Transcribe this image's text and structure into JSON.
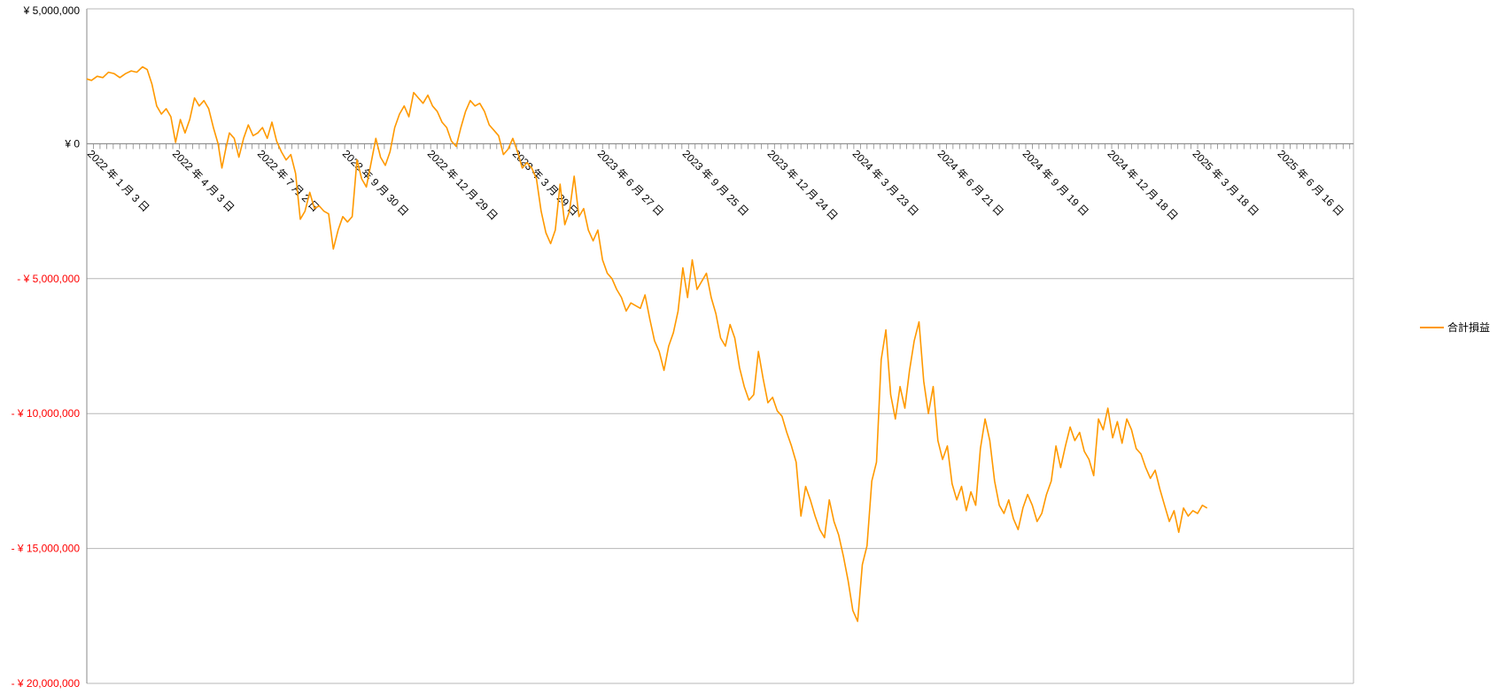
{
  "chart_data": {
    "type": "line",
    "y_ticks": [
      {
        "value": 5000000,
        "label": "¥ 5,000,000"
      },
      {
        "value": 0,
        "label": "¥ 0"
      },
      {
        "value": -5000000,
        "label": "- ¥ 5,000,000"
      },
      {
        "value": -10000000,
        "label": "- ¥ 10,000,000"
      },
      {
        "value": -15000000,
        "label": "- ¥ 15,000,000"
      },
      {
        "value": -20000000,
        "label": "- ¥ 20,000,000"
      }
    ],
    "ylim": [
      -20000000,
      5000000
    ],
    "xlim": [
      "2022-01-03",
      "2025-09-05"
    ],
    "x_tick_labels": [
      {
        "date": "2022-01-03",
        "label": "2022 年 1 月 3 日"
      },
      {
        "date": "2022-04-03",
        "label": "2022 年 4 月 3 日"
      },
      {
        "date": "2022-07-02",
        "label": "2022 年 7 月 2 日"
      },
      {
        "date": "2022-09-30",
        "label": "2022 年 9 月 30 日"
      },
      {
        "date": "2022-12-29",
        "label": "2022 年 12 月 29 日"
      },
      {
        "date": "2023-03-29",
        "label": "2023 年 3 月 29 日"
      },
      {
        "date": "2023-06-27",
        "label": "2023 年 6 月 27 日"
      },
      {
        "date": "2023-09-25",
        "label": "2023 年 9 月 25 日"
      },
      {
        "date": "2023-12-24",
        "label": "2023 年 12 月 24 日"
      },
      {
        "date": "2024-03-23",
        "label": "2024 年 3 月 23 日"
      },
      {
        "date": "2024-06-21",
        "label": "2024 年 6 月 21 日"
      },
      {
        "date": "2024-09-19",
        "label": "2024 年 9 月 19 日"
      },
      {
        "date": "2024-12-18",
        "label": "2024 年 12 月 18 日"
      },
      {
        "date": "2025-03-18",
        "label": "2025 年 3 月 18 日"
      },
      {
        "date": "2025-06-16",
        "label": "2025 年 6 月 16 日"
      }
    ],
    "grid": true,
    "legend_position": "right",
    "colors": {
      "series": "#ff9900",
      "negative_label": "#ff0000",
      "grid": "#b7b7b7",
      "axis": "#888888"
    },
    "series": [
      {
        "name": "合計損益",
        "points": [
          [
            "2022-01-03",
            2400000
          ],
          [
            "2022-01-08",
            2350000
          ],
          [
            "2022-01-14",
            2500000
          ],
          [
            "2022-01-20",
            2450000
          ],
          [
            "2022-01-26",
            2650000
          ],
          [
            "2022-02-01",
            2600000
          ],
          [
            "2022-02-07",
            2450000
          ],
          [
            "2022-02-13",
            2600000
          ],
          [
            "2022-02-19",
            2700000
          ],
          [
            "2022-02-25",
            2650000
          ],
          [
            "2022-03-03",
            2850000
          ],
          [
            "2022-03-08",
            2750000
          ],
          [
            "2022-03-13",
            2200000
          ],
          [
            "2022-03-18",
            1400000
          ],
          [
            "2022-03-23",
            1100000
          ],
          [
            "2022-03-28",
            1300000
          ],
          [
            "2022-04-02",
            1000000
          ],
          [
            "2022-04-07",
            50000
          ],
          [
            "2022-04-12",
            900000
          ],
          [
            "2022-04-17",
            400000
          ],
          [
            "2022-04-22",
            900000
          ],
          [
            "2022-04-27",
            1700000
          ],
          [
            "2022-05-02",
            1400000
          ],
          [
            "2022-05-07",
            1600000
          ],
          [
            "2022-05-12",
            1300000
          ],
          [
            "2022-05-17",
            600000
          ],
          [
            "2022-05-22",
            0
          ],
          [
            "2022-05-26",
            -900000
          ],
          [
            "2022-05-30",
            -200000
          ],
          [
            "2022-06-03",
            400000
          ],
          [
            "2022-06-08",
            200000
          ],
          [
            "2022-06-13",
            -500000
          ],
          [
            "2022-06-18",
            200000
          ],
          [
            "2022-06-23",
            700000
          ],
          [
            "2022-06-28",
            300000
          ],
          [
            "2022-07-03",
            400000
          ],
          [
            "2022-07-08",
            600000
          ],
          [
            "2022-07-13",
            200000
          ],
          [
            "2022-07-18",
            800000
          ],
          [
            "2022-07-23",
            100000
          ],
          [
            "2022-07-28",
            -300000
          ],
          [
            "2022-08-02",
            -600000
          ],
          [
            "2022-08-07",
            -400000
          ],
          [
            "2022-08-12",
            -1100000
          ],
          [
            "2022-08-17",
            -2800000
          ],
          [
            "2022-08-22",
            -2500000
          ],
          [
            "2022-08-27",
            -1800000
          ],
          [
            "2022-09-01",
            -2400000
          ],
          [
            "2022-09-06",
            -2300000
          ],
          [
            "2022-09-11",
            -2500000
          ],
          [
            "2022-09-16",
            -2600000
          ],
          [
            "2022-09-21",
            -3900000
          ],
          [
            "2022-09-26",
            -3200000
          ],
          [
            "2022-10-01",
            -2700000
          ],
          [
            "2022-10-06",
            -2900000
          ],
          [
            "2022-10-11",
            -2700000
          ],
          [
            "2022-10-16",
            -600000
          ],
          [
            "2022-10-21",
            -1300000
          ],
          [
            "2022-10-26",
            -1600000
          ],
          [
            "2022-10-31",
            -700000
          ],
          [
            "2022-11-05",
            200000
          ],
          [
            "2022-11-10",
            -500000
          ],
          [
            "2022-11-15",
            -800000
          ],
          [
            "2022-11-20",
            -300000
          ],
          [
            "2022-11-25",
            600000
          ],
          [
            "2022-11-30",
            1100000
          ],
          [
            "2022-12-05",
            1400000
          ],
          [
            "2022-12-10",
            1000000
          ],
          [
            "2022-12-15",
            1900000
          ],
          [
            "2022-12-20",
            1700000
          ],
          [
            "2022-12-25",
            1500000
          ],
          [
            "2022-12-30",
            1800000
          ],
          [
            "2023-01-04",
            1400000
          ],
          [
            "2023-01-09",
            1200000
          ],
          [
            "2023-01-14",
            800000
          ],
          [
            "2023-01-19",
            600000
          ],
          [
            "2023-01-24",
            100000
          ],
          [
            "2023-01-29",
            -100000
          ],
          [
            "2023-02-03",
            600000
          ],
          [
            "2023-02-08",
            1200000
          ],
          [
            "2023-02-13",
            1600000
          ],
          [
            "2023-02-18",
            1400000
          ],
          [
            "2023-02-23",
            1500000
          ],
          [
            "2023-02-28",
            1200000
          ],
          [
            "2023-03-05",
            700000
          ],
          [
            "2023-03-10",
            500000
          ],
          [
            "2023-03-15",
            300000
          ],
          [
            "2023-03-20",
            -400000
          ],
          [
            "2023-03-25",
            -200000
          ],
          [
            "2023-03-30",
            200000
          ],
          [
            "2023-04-04",
            -300000
          ],
          [
            "2023-04-09",
            -900000
          ],
          [
            "2023-04-14",
            -700000
          ],
          [
            "2023-04-19",
            -900000
          ],
          [
            "2023-04-24",
            -1300000
          ],
          [
            "2023-04-29",
            -2500000
          ],
          [
            "2023-05-04",
            -3300000
          ],
          [
            "2023-05-09",
            -3700000
          ],
          [
            "2023-05-14",
            -3200000
          ],
          [
            "2023-05-19",
            -1500000
          ],
          [
            "2023-05-24",
            -3000000
          ],
          [
            "2023-05-29",
            -2500000
          ],
          [
            "2023-06-03",
            -1200000
          ],
          [
            "2023-06-08",
            -2700000
          ],
          [
            "2023-06-13",
            -2400000
          ],
          [
            "2023-06-18",
            -3200000
          ],
          [
            "2023-06-23",
            -3600000
          ],
          [
            "2023-06-28",
            -3200000
          ],
          [
            "2023-07-03",
            -4300000
          ],
          [
            "2023-07-08",
            -4800000
          ],
          [
            "2023-07-13",
            -5000000
          ],
          [
            "2023-07-18",
            -5400000
          ],
          [
            "2023-07-23",
            -5700000
          ],
          [
            "2023-07-28",
            -6200000
          ],
          [
            "2023-08-02",
            -5900000
          ],
          [
            "2023-08-07",
            -6000000
          ],
          [
            "2023-08-12",
            -6100000
          ],
          [
            "2023-08-17",
            -5600000
          ],
          [
            "2023-08-22",
            -6500000
          ],
          [
            "2023-08-27",
            -7300000
          ],
          [
            "2023-09-01",
            -7700000
          ],
          [
            "2023-09-06",
            -8400000
          ],
          [
            "2023-09-11",
            -7500000
          ],
          [
            "2023-09-16",
            -7000000
          ],
          [
            "2023-09-21",
            -6200000
          ],
          [
            "2023-09-26",
            -4600000
          ],
          [
            "2023-10-01",
            -5700000
          ],
          [
            "2023-10-06",
            -4300000
          ],
          [
            "2023-10-11",
            -5400000
          ],
          [
            "2023-10-16",
            -5100000
          ],
          [
            "2023-10-21",
            -4800000
          ],
          [
            "2023-10-26",
            -5700000
          ],
          [
            "2023-10-31",
            -6300000
          ],
          [
            "2023-11-05",
            -7200000
          ],
          [
            "2023-11-10",
            -7500000
          ],
          [
            "2023-11-15",
            -6700000
          ],
          [
            "2023-11-20",
            -7200000
          ],
          [
            "2023-11-25",
            -8300000
          ],
          [
            "2023-11-30",
            -9000000
          ],
          [
            "2023-12-05",
            -9500000
          ],
          [
            "2023-12-10",
            -9300000
          ],
          [
            "2023-12-15",
            -7700000
          ],
          [
            "2023-12-20",
            -8700000
          ],
          [
            "2023-12-25",
            -9600000
          ],
          [
            "2023-12-30",
            -9400000
          ],
          [
            "2024-01-04",
            -9900000
          ],
          [
            "2024-01-09",
            -10100000
          ],
          [
            "2024-01-14",
            -10700000
          ],
          [
            "2024-01-19",
            -11200000
          ],
          [
            "2024-01-24",
            -11800000
          ],
          [
            "2024-01-29",
            -13800000
          ],
          [
            "2024-02-03",
            -12700000
          ],
          [
            "2024-02-08",
            -13200000
          ],
          [
            "2024-02-13",
            -13800000
          ],
          [
            "2024-02-18",
            -14300000
          ],
          [
            "2024-02-23",
            -14600000
          ],
          [
            "2024-02-28",
            -13200000
          ],
          [
            "2024-03-04",
            -14000000
          ],
          [
            "2024-03-09",
            -14500000
          ],
          [
            "2024-03-14",
            -15300000
          ],
          [
            "2024-03-19",
            -16200000
          ],
          [
            "2024-03-24",
            -17300000
          ],
          [
            "2024-03-29",
            -17700000
          ],
          [
            "2024-04-03",
            -15600000
          ],
          [
            "2024-04-08",
            -14900000
          ],
          [
            "2024-04-13",
            -12500000
          ],
          [
            "2024-04-18",
            -11800000
          ],
          [
            "2024-04-23",
            -8000000
          ],
          [
            "2024-04-28",
            -6900000
          ],
          [
            "2024-05-03",
            -9300000
          ],
          [
            "2024-05-08",
            -10200000
          ],
          [
            "2024-05-13",
            -9000000
          ],
          [
            "2024-05-18",
            -9800000
          ],
          [
            "2024-05-23",
            -8400000
          ],
          [
            "2024-05-28",
            -7300000
          ],
          [
            "2024-06-02",
            -6600000
          ],
          [
            "2024-06-07",
            -8800000
          ],
          [
            "2024-06-12",
            -10000000
          ],
          [
            "2024-06-17",
            -9000000
          ],
          [
            "2024-06-22",
            -11000000
          ],
          [
            "2024-06-27",
            -11700000
          ],
          [
            "2024-07-02",
            -11200000
          ],
          [
            "2024-07-07",
            -12600000
          ],
          [
            "2024-07-12",
            -13200000
          ],
          [
            "2024-07-17",
            -12700000
          ],
          [
            "2024-07-22",
            -13600000
          ],
          [
            "2024-07-27",
            -12900000
          ],
          [
            "2024-08-01",
            -13400000
          ],
          [
            "2024-08-06",
            -11300000
          ],
          [
            "2024-08-11",
            -10200000
          ],
          [
            "2024-08-16",
            -11000000
          ],
          [
            "2024-08-21",
            -12500000
          ],
          [
            "2024-08-26",
            -13400000
          ],
          [
            "2024-08-31",
            -13700000
          ],
          [
            "2024-09-05",
            -13200000
          ],
          [
            "2024-09-10",
            -13900000
          ],
          [
            "2024-09-15",
            -14300000
          ],
          [
            "2024-09-20",
            -13500000
          ],
          [
            "2024-09-25",
            -13000000
          ],
          [
            "2024-09-30",
            -13400000
          ],
          [
            "2024-10-05",
            -14000000
          ],
          [
            "2024-10-10",
            -13700000
          ],
          [
            "2024-10-15",
            -13000000
          ],
          [
            "2024-10-20",
            -12500000
          ],
          [
            "2024-10-25",
            -11200000
          ],
          [
            "2024-10-30",
            -12000000
          ],
          [
            "2024-11-04",
            -11200000
          ],
          [
            "2024-11-09",
            -10500000
          ],
          [
            "2024-11-14",
            -11000000
          ],
          [
            "2024-11-19",
            -10700000
          ],
          [
            "2024-11-24",
            -11400000
          ],
          [
            "2024-11-29",
            -11700000
          ],
          [
            "2024-12-04",
            -12300000
          ],
          [
            "2024-12-09",
            -10200000
          ],
          [
            "2024-12-14",
            -10600000
          ],
          [
            "2024-12-19",
            -9800000
          ],
          [
            "2024-12-24",
            -10900000
          ],
          [
            "2024-12-29",
            -10300000
          ],
          [
            "2025-01-03",
            -11100000
          ],
          [
            "2025-01-08",
            -10200000
          ],
          [
            "2025-01-13",
            -10600000
          ],
          [
            "2025-01-18",
            -11300000
          ],
          [
            "2025-01-23",
            -11500000
          ],
          [
            "2025-01-28",
            -12000000
          ],
          [
            "2025-02-02",
            -12400000
          ],
          [
            "2025-02-07",
            -12100000
          ],
          [
            "2025-02-12",
            -12800000
          ],
          [
            "2025-02-17",
            -13400000
          ],
          [
            "2025-02-22",
            -14000000
          ],
          [
            "2025-02-27",
            -13600000
          ],
          [
            "2025-03-04",
            -14400000
          ],
          [
            "2025-03-09",
            -13500000
          ],
          [
            "2025-03-14",
            -13800000
          ],
          [
            "2025-03-19",
            -13600000
          ],
          [
            "2025-03-24",
            -13700000
          ],
          [
            "2025-03-29",
            -13400000
          ],
          [
            "2025-04-03",
            -13500000
          ]
        ]
      }
    ]
  }
}
